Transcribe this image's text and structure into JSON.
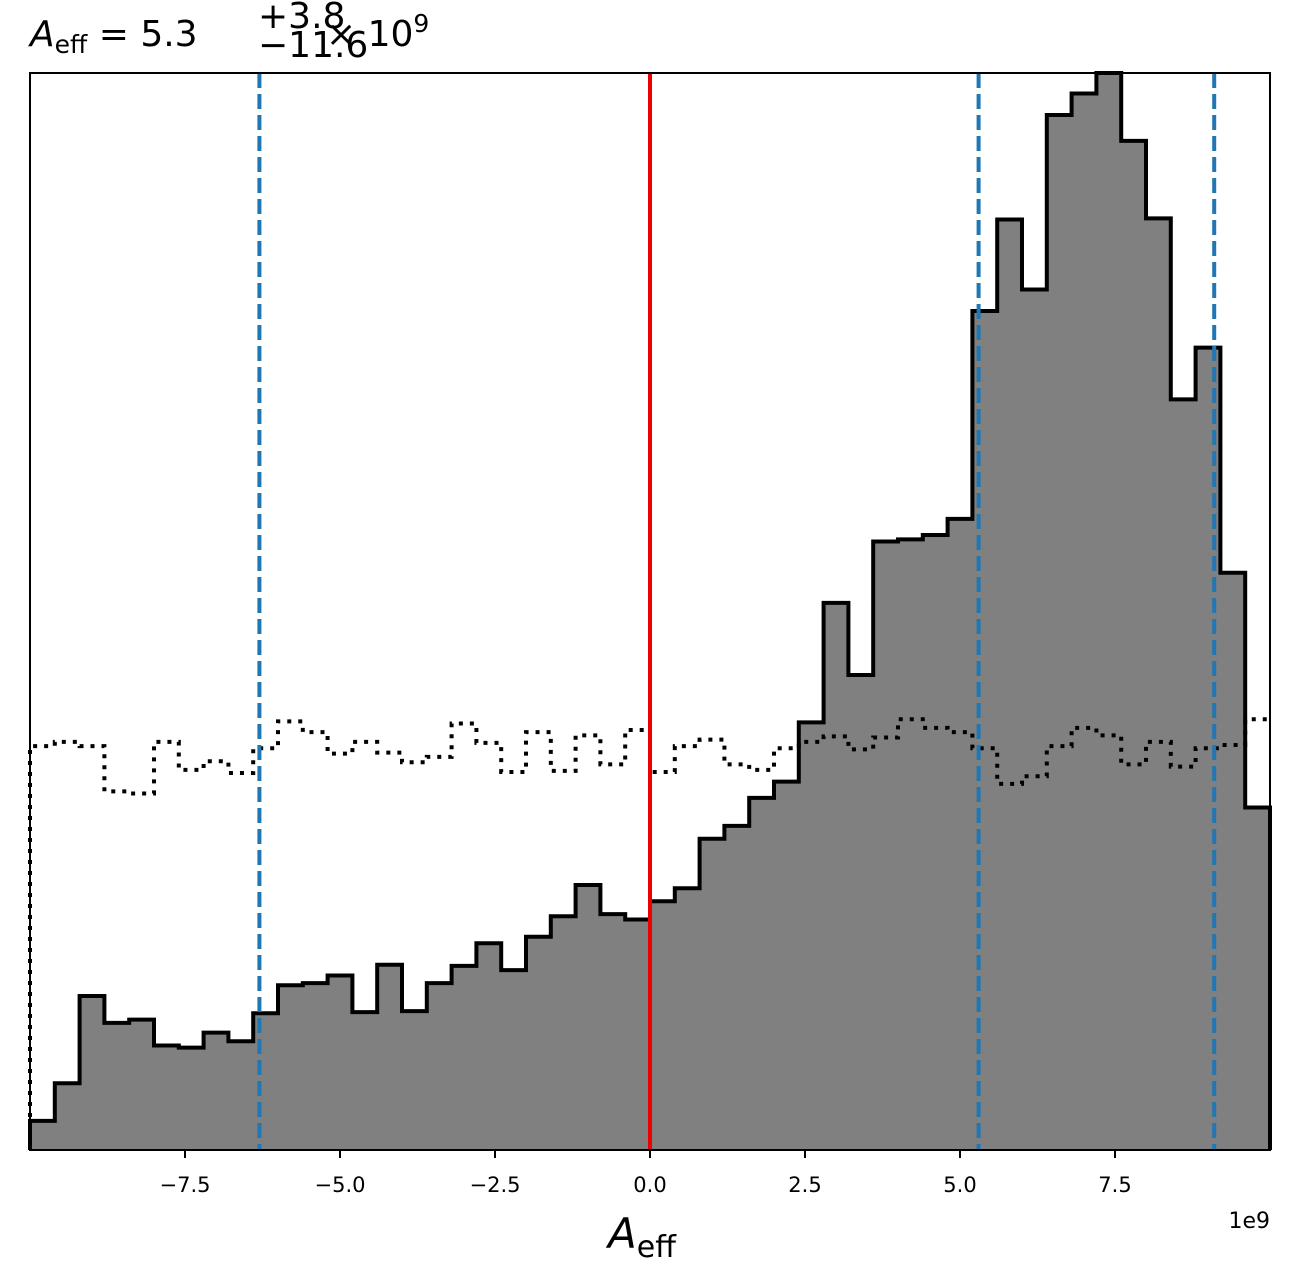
{
  "chart_data": {
    "type": "histogram",
    "title": {
      "symbol": "A",
      "symbol_sub": "eff",
      "median": "5.3",
      "upper_err": "+3.8",
      "lower_err": "−11.6",
      "multiplier": "× 10",
      "exponent": "9"
    },
    "xlabel": {
      "symbol": "A",
      "sub": "eff"
    },
    "x_offset_label": "1e9",
    "xlim": [
      -10.0,
      10.0
    ],
    "x_scale": 1000000000.0,
    "xticks": [
      {
        "value": -7.5,
        "label": "−7.5"
      },
      {
        "value": -5.0,
        "label": "−5.0"
      },
      {
        "value": -2.5,
        "label": "−2.5"
      },
      {
        "value": 0.0,
        "label": "0.0"
      },
      {
        "value": 2.5,
        "label": "2.5"
      },
      {
        "value": 5.0,
        "label": "5.0"
      },
      {
        "value": 7.5,
        "label": "7.5"
      }
    ],
    "yticks_visible": false,
    "bin_edges": [
      -10.0,
      -9.6,
      -9.2,
      -8.8,
      -8.4,
      -8.0,
      -7.6,
      -7.2,
      -6.8,
      -6.4,
      -6.0,
      -5.6,
      -5.2,
      -4.8,
      -4.4,
      -4.0,
      -3.6,
      -3.2,
      -2.8,
      -2.4,
      -2.0,
      -1.6,
      -1.2,
      -0.8,
      -0.4,
      0.0,
      0.4,
      0.8,
      1.2,
      1.6,
      2.0,
      2.4,
      2.8,
      3.2,
      3.6,
      4.0,
      4.4,
      4.8,
      5.2,
      5.6,
      6.0,
      6.4,
      6.8,
      7.2,
      7.6,
      8.0,
      8.4,
      8.8,
      9.2,
      9.6,
      10.0
    ],
    "series": [
      {
        "name": "posterior",
        "style": "filled-step",
        "fill": "#808080",
        "stroke": "#000000",
        "counts": [
          0.027,
          0.062,
          0.143,
          0.118,
          0.121,
          0.097,
          0.095,
          0.109,
          0.101,
          0.127,
          0.153,
          0.155,
          0.162,
          0.128,
          0.172,
          0.129,
          0.155,
          0.171,
          0.192,
          0.167,
          0.198,
          0.217,
          0.246,
          0.219,
          0.214,
          0.231,
          0.243,
          0.289,
          0.301,
          0.327,
          0.342,
          0.397,
          0.508,
          0.441,
          0.565,
          0.567,
          0.571,
          0.586,
          0.779,
          0.864,
          0.799,
          0.961,
          0.981,
          1.005,
          0.937,
          0.865,
          0.697,
          0.745,
          0.536,
          0.318
        ]
      },
      {
        "name": "prior",
        "style": "dotted-step",
        "stroke": "#000000",
        "counts": [
          0.375,
          0.379,
          0.375,
          0.333,
          0.331,
          0.379,
          0.353,
          0.361,
          0.35,
          0.373,
          0.398,
          0.388,
          0.368,
          0.379,
          0.369,
          0.36,
          0.365,
          0.396,
          0.378,
          0.351,
          0.388,
          0.352,
          0.385,
          0.358,
          0.39,
          0.351,
          0.375,
          0.381,
          0.358,
          0.353,
          0.373,
          0.379,
          0.384,
          0.372,
          0.383,
          0.4,
          0.392,
          0.388,
          0.373,
          0.34,
          0.347,
          0.375,
          0.392,
          0.385,
          0.358,
          0.379,
          0.356,
          0.373,
          0.376,
          0.4
        ]
      }
    ],
    "vlines": [
      {
        "name": "truth",
        "x": 0.0,
        "color": "#ee0000",
        "style": "solid"
      },
      {
        "name": "lower-quantile",
        "x": -6.3,
        "color": "#1f77b4",
        "style": "dashed"
      },
      {
        "name": "median",
        "x": 5.3,
        "color": "#1f77b4",
        "style": "dashed"
      },
      {
        "name": "upper-quantile",
        "x": 9.1,
        "color": "#1f77b4",
        "style": "dashed"
      }
    ],
    "ylim": [
      0,
      1.0
    ],
    "grid": false,
    "legend": "none"
  }
}
